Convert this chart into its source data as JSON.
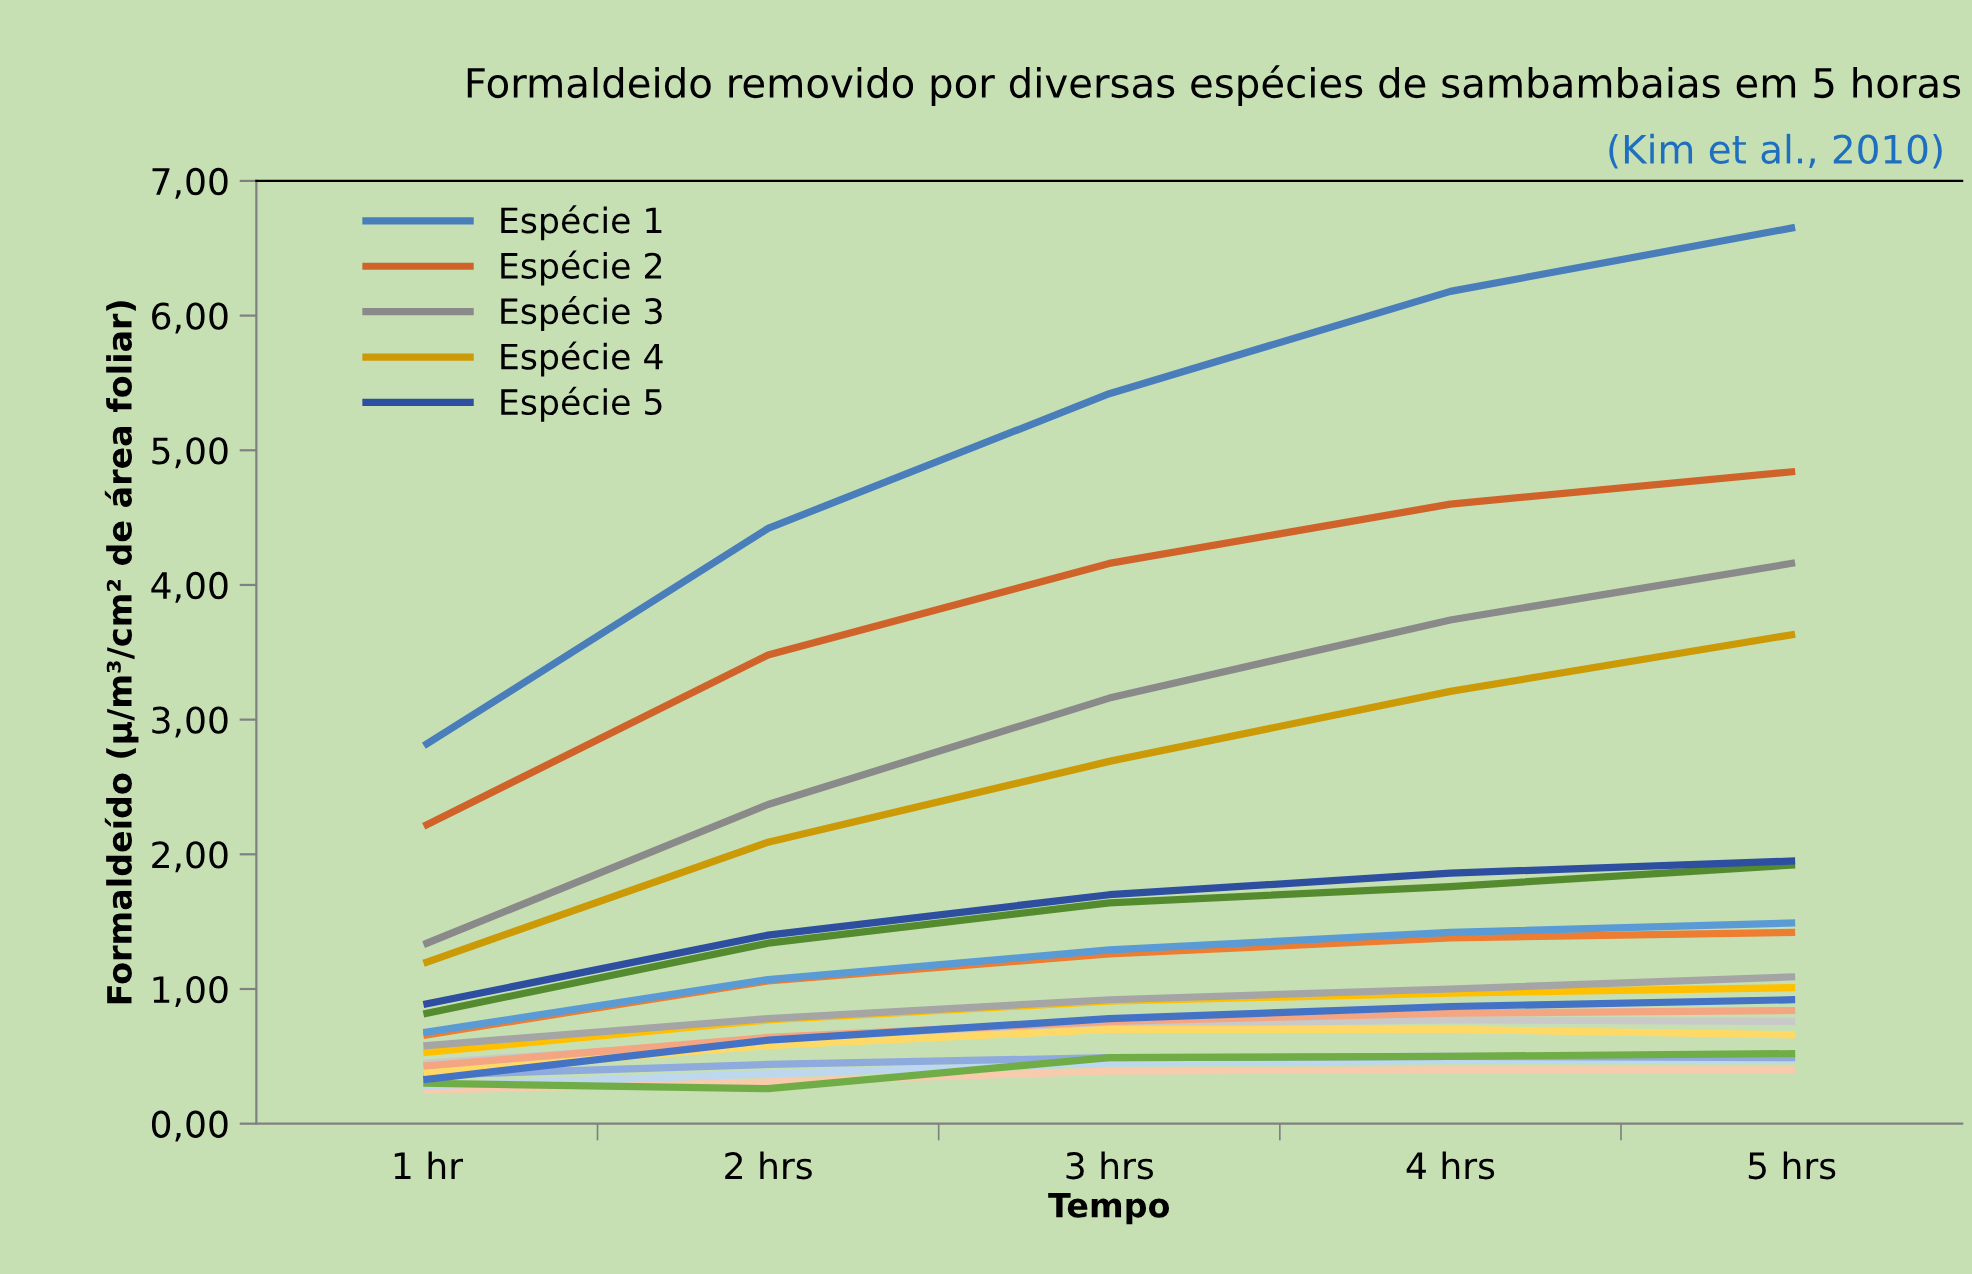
{
  "chart_data": {
    "type": "line",
    "title": "Formaldeido removido por diversas espécies de sambambaias em 5 horas",
    "xlabel": "Tempo",
    "ylabel": "Formaldeído (µ/m³/cm² de área foliar)",
    "annotations": [
      "(Kim et al., 2010)"
    ],
    "categories": [
      "1 hr",
      "2 hrs",
      "3 hrs",
      "4 hrs",
      "5 hrs"
    ],
    "ylim": [
      0,
      7
    ],
    "yticks": [
      {
        "value": 0,
        "label": "0,00"
      },
      {
        "value": 1,
        "label": "1,00"
      },
      {
        "value": 2,
        "label": "2,00"
      },
      {
        "value": 3,
        "label": "3,00"
      },
      {
        "value": 4,
        "label": "4,00"
      },
      {
        "value": 5,
        "label": "5,00"
      },
      {
        "value": 6,
        "label": "6,00"
      },
      {
        "value": 7,
        "label": "7,00"
      }
    ],
    "grid": false,
    "legend": "top left",
    "marker": "none",
    "line_style": "solid",
    "series": [
      {
        "name": "Espécie 1",
        "color": "#4a7ebb",
        "values": [
          2.82,
          4.42,
          5.42,
          6.18,
          6.65
        ]
      },
      {
        "name": "Espécie 2",
        "color": "#d0632a",
        "values": [
          2.22,
          3.48,
          4.16,
          4.6,
          4.84
        ]
      },
      {
        "name": "Espécie 3",
        "color": "#8a8a8a",
        "values": [
          1.34,
          2.37,
          3.16,
          3.74,
          4.16
        ]
      },
      {
        "name": "Espécie 4",
        "color": "#cc9a06",
        "values": [
          1.2,
          2.09,
          2.69,
          3.21,
          3.63
        ]
      },
      {
        "name": "Espécie 5",
        "color": "#2e4fa0",
        "values": [
          0.89,
          1.4,
          1.7,
          1.86,
          1.95
        ]
      },
      {
        "color": "#558b2f",
        "values": [
          0.82,
          1.34,
          1.64,
          1.76,
          1.92
        ]
      },
      {
        "color": "#5b9bd5",
        "values": [
          0.68,
          1.07,
          1.29,
          1.42,
          1.49
        ]
      },
      {
        "color": "#ed7d31",
        "values": [
          0.66,
          1.06,
          1.26,
          1.38,
          1.42
        ]
      },
      {
        "color": "#a5a5a5",
        "values": [
          0.58,
          0.78,
          0.92,
          1.0,
          1.09
        ]
      },
      {
        "color": "#ffc000",
        "values": [
          0.53,
          0.77,
          0.91,
          0.97,
          1.01
        ]
      },
      {
        "color": "#4472c4",
        "values": [
          0.33,
          0.62,
          0.78,
          0.87,
          0.92
        ]
      },
      {
        "color": "#70ad47",
        "values": [
          0.3,
          0.26,
          0.49,
          0.5,
          0.52
        ]
      },
      {
        "color": "#f4a582",
        "values": [
          0.43,
          0.64,
          0.76,
          0.82,
          0.84
        ]
      },
      {
        "color": "#ffd966",
        "values": [
          0.38,
          0.58,
          0.7,
          0.7,
          0.66
        ]
      },
      {
        "color": "#c9c9c9",
        "values": [
          0.45,
          0.62,
          0.74,
          0.77,
          0.76
        ]
      },
      {
        "color": "#8faadc",
        "values": [
          0.36,
          0.44,
          0.49,
          0.5,
          0.49
        ]
      },
      {
        "color": "#bdd7ee",
        "values": [
          0.28,
          0.37,
          0.45,
          0.47,
          0.48
        ]
      },
      {
        "color": "#f8cbad",
        "values": [
          0.25,
          0.31,
          0.39,
          0.4,
          0.4
        ]
      }
    ]
  }
}
